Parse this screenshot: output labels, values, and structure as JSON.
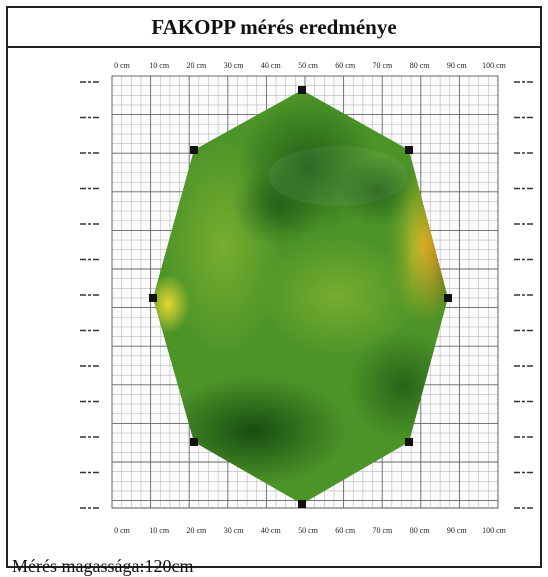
{
  "title": "FAKOPP mérés eredménye",
  "axis_labels": [
    "0 cm",
    "10 cm",
    "20 cm",
    "30 cm",
    "40 cm",
    "50 cm",
    "60 cm",
    "70 cm",
    "80 cm",
    "90 cm",
    "100 cm"
  ],
  "footer": "Mérés magassága:120cm",
  "colors": {
    "healthy": "#3f8a24",
    "dark_healthy": "#1f5e17",
    "warning": "#e8a020",
    "decay": "#d9381a",
    "grid": "#999999"
  }
}
